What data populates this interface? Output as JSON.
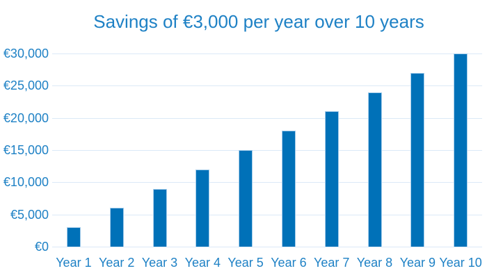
{
  "chart_data": {
    "type": "bar",
    "title": "Savings of €3,000 per year over 10 years",
    "categories": [
      "Year 1",
      "Year 2",
      "Year 3",
      "Year 4",
      "Year 5",
      "Year 6",
      "Year 7",
      "Year 8",
      "Year 9",
      "Year 10"
    ],
    "values": [
      3000,
      6000,
      9000,
      12000,
      15000,
      18000,
      21000,
      24000,
      27000,
      30000
    ],
    "xlabel": "",
    "ylabel": "",
    "ylim": [
      0,
      30000
    ],
    "ytick_step": 5000,
    "ytick_labels": [
      "€0",
      "€5,000",
      "€10,000",
      "€15,000",
      "€20,000",
      "€25,000",
      "€30,000"
    ],
    "grid": true,
    "legend": false,
    "colors": {
      "bar_fill": "#0071b8",
      "bar_border": "#a6cdeb",
      "gridline": "#dbe9f7",
      "text": "#1e81c5",
      "background": "#ffffff"
    }
  }
}
